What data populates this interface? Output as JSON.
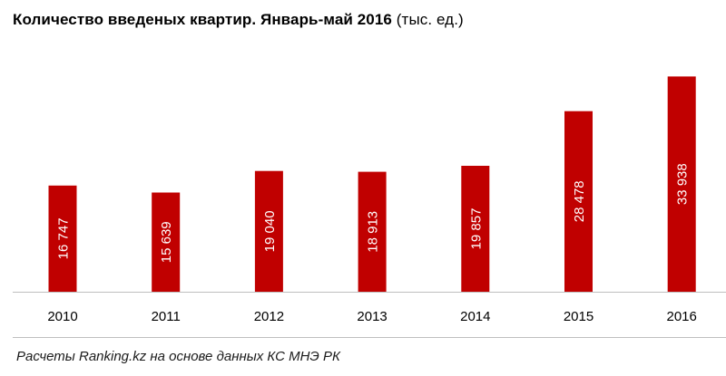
{
  "title": {
    "main": "Количество  введеных квартир.  Январь-май  2016",
    "unit": " (тыс. ед.)"
  },
  "source": "Расчеты Ranking.kz на основе данных КС МНЭ РК",
  "colors": {
    "bar": "#c00000",
    "label": "#ffffff",
    "axis": "#bfbfbf",
    "text": "#000000"
  },
  "chart_data": {
    "type": "bar",
    "title": "Количество  введеных квартир.  Январь-май  2016 (тыс. ед.)",
    "categories": [
      "2010",
      "2011",
      "2012",
      "2013",
      "2014",
      "2015",
      "2016"
    ],
    "values": [
      16747,
      15639,
      19040,
      18913,
      19857,
      28478,
      33938
    ],
    "labels": [
      "16 747",
      "15 639",
      "19 040",
      "18 913",
      "19 857",
      "28 478",
      "33 938"
    ],
    "xlabel": "",
    "ylabel": "",
    "ylim": [
      0,
      36000
    ],
    "grid": false,
    "legend": "none",
    "data_labels": "inside-vertical"
  }
}
